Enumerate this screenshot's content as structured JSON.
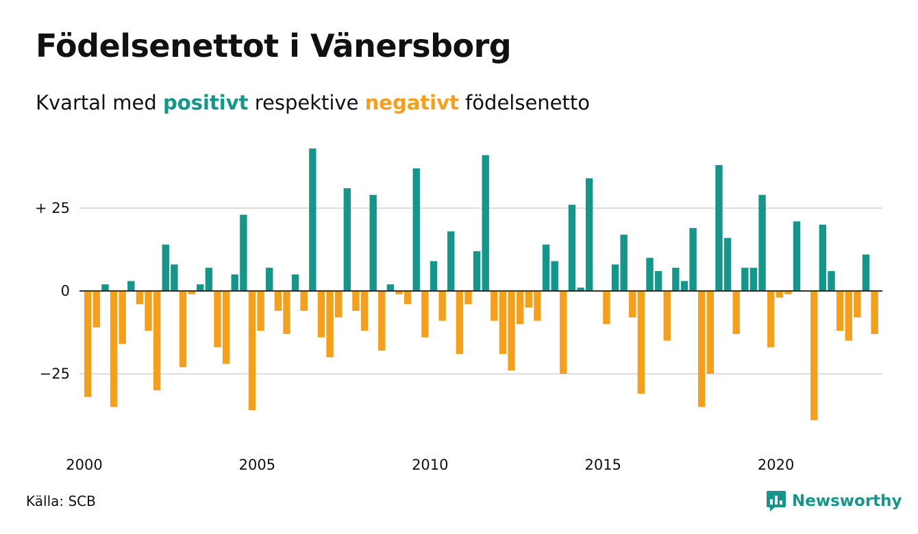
{
  "header": {
    "title": "Födelsenettot i Vänersborg",
    "subtitle_prefix": "Kvartal med",
    "subtitle_positive": "positivt",
    "subtitle_middle": "respektive",
    "subtitle_negative": "negativt",
    "subtitle_suffix": "födelsenetto"
  },
  "footer": {
    "source": "Källa: SCB",
    "brand": "Newsworthy",
    "brand_icon": "bar-chart-speech-bubble-icon"
  },
  "colors": {
    "positive": "#15968a",
    "negative": "#f59f1a",
    "grid": "#dddddd",
    "text": "#111111"
  },
  "chart_data": {
    "type": "bar",
    "title": "Födelsenettot i Vänersborg",
    "subtitle": "Kvartal med positivt respektive negativt födelsenetto",
    "x_start": "2000 Q1",
    "x_ticks": [
      "2000",
      "2005",
      "2010",
      "2015",
      "2020"
    ],
    "y_ticks": [
      {
        "value": 25,
        "label": "+ 25"
      },
      {
        "value": 0,
        "label": "0"
      },
      {
        "value": -25,
        "label": "−25"
      }
    ],
    "ylim": [
      -45,
      45
    ],
    "grid": true,
    "series": [
      {
        "values": [
          -32,
          -11,
          2,
          -35,
          -16,
          3,
          -4,
          -12,
          -30,
          14,
          8,
          -23,
          -1,
          2,
          7,
          -17,
          -22,
          5,
          23,
          -36,
          -12,
          7,
          -6,
          -13,
          5,
          -6,
          43,
          -14,
          -20,
          -8,
          31,
          -6,
          -12,
          29,
          -18,
          2,
          -1,
          -4,
          37,
          -14,
          9,
          -9,
          18,
          -19,
          -4,
          12,
          41,
          -9,
          -19,
          -24,
          -10,
          -5,
          -9,
          14,
          9,
          -25,
          26,
          1,
          34,
          0,
          -10,
          8,
          17,
          -8,
          -31,
          10,
          6,
          -15,
          7,
          3,
          19,
          -35,
          -25,
          38,
          16,
          -13,
          7,
          7,
          29,
          -17,
          -2,
          -1,
          21,
          0,
          -39,
          20,
          6,
          -12,
          -15,
          -8,
          11,
          -13
        ]
      }
    ]
  }
}
